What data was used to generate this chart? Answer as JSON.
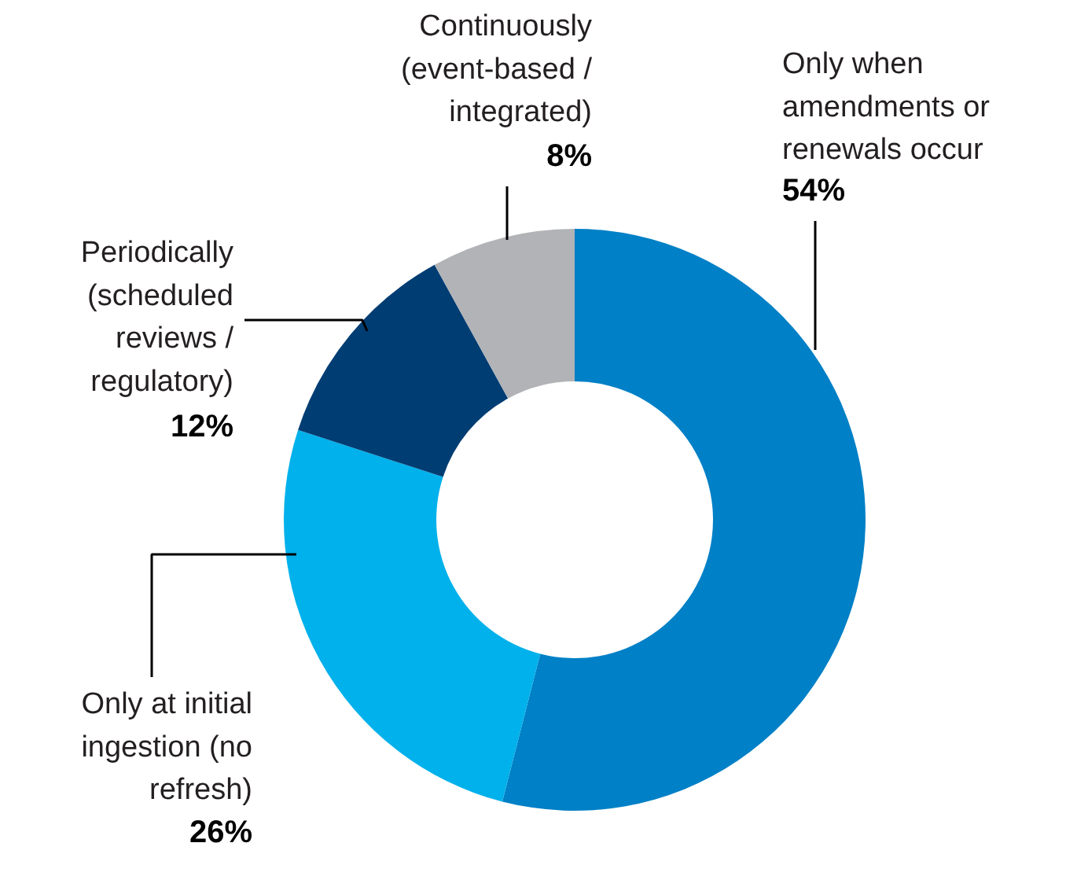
{
  "chart_data": {
    "type": "donut",
    "categories": [
      "Only when\namendments or\nrenewals occur",
      "Only at initial\ningestion (no\nrefresh)",
      "Periodically\n(scheduled\nreviews /\nregulatory)",
      "Continuously\n(event-based /\nintegrated)"
    ],
    "values": [
      54,
      26,
      12,
      8
    ],
    "colors": [
      "#0080c6",
      "#00b1eb",
      "#003d73",
      "#b1b3b6"
    ],
    "value_labels": [
      "54%",
      "26%",
      "12%",
      "8%"
    ]
  }
}
